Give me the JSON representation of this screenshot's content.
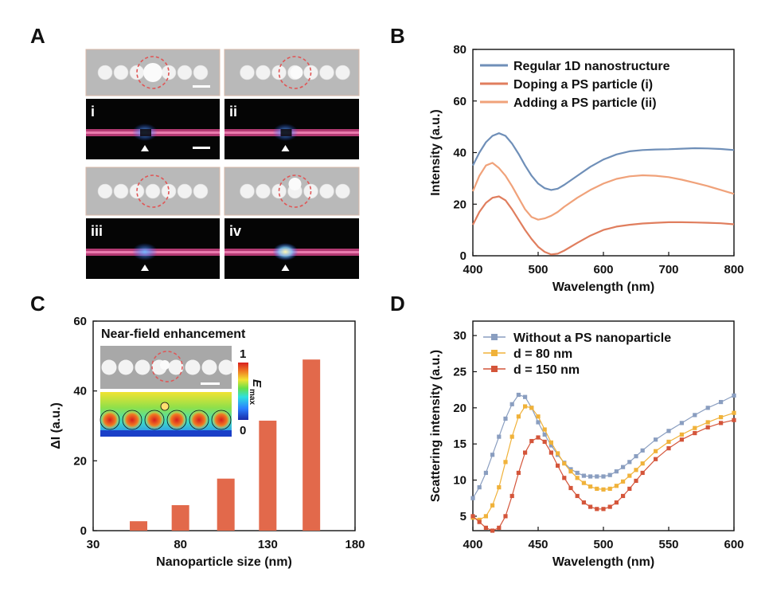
{
  "panel_letters": {
    "a": "A",
    "b": "B",
    "c": "C",
    "d": "D"
  },
  "panel_a": {
    "subpanels": [
      "i",
      "ii",
      "iii",
      "iv"
    ],
    "sem_bg": "#b9b9b9",
    "particle_color": "#f2f2f2",
    "highlight_circle_color": "#e05555",
    "dark_bg": "#050505",
    "line_color": "#c8407f",
    "spot_color": "#3a8cff"
  },
  "chart_data": [
    {
      "panel": "B",
      "type": "line",
      "xlabel": "Wavelength (nm)",
      "ylabel": "Intensity (a.u.)",
      "xlim": [
        400,
        800
      ],
      "ylim": [
        0,
        80
      ],
      "xticks": [
        400,
        500,
        600,
        700,
        800
      ],
      "yticks": [
        0,
        20,
        40,
        60,
        80
      ],
      "grid": false,
      "legend_position": "top-left",
      "series": [
        {
          "name": "Regular 1D nanostructure",
          "color": "#6f8fb8",
          "x": [
            400,
            410,
            420,
            430,
            440,
            450,
            460,
            470,
            480,
            490,
            500,
            510,
            520,
            530,
            540,
            560,
            580,
            600,
            620,
            640,
            660,
            680,
            700,
            720,
            740,
            760,
            780,
            800
          ],
          "y": [
            35,
            40,
            44,
            46.5,
            47.5,
            46.5,
            43.5,
            39.5,
            35,
            31,
            28,
            26.2,
            25.5,
            26,
            27.5,
            31,
            34.5,
            37.3,
            39.3,
            40.5,
            41,
            41.2,
            41.3,
            41.5,
            41.7,
            41.6,
            41.4,
            41
          ]
        },
        {
          "name": "Doping a PS particle (i)",
          "color": "#e07e5e",
          "x": [
            400,
            410,
            420,
            430,
            440,
            450,
            460,
            470,
            480,
            490,
            500,
            510,
            520,
            530,
            540,
            560,
            580,
            600,
            620,
            640,
            660,
            680,
            700,
            720,
            740,
            760,
            780,
            800
          ],
          "y": [
            12,
            17,
            20.5,
            22.5,
            23,
            21.5,
            18,
            14,
            10,
            6.5,
            3.5,
            1.5,
            0.5,
            0.8,
            2,
            5,
            7.8,
            10,
            11.3,
            12,
            12.5,
            12.8,
            13,
            13,
            12.9,
            12.8,
            12.6,
            12.2
          ]
        },
        {
          "name": "Adding a PS particle (ii)",
          "color": "#f0a27a",
          "x": [
            400,
            410,
            420,
            430,
            440,
            450,
            460,
            470,
            480,
            490,
            500,
            510,
            520,
            530,
            540,
            560,
            580,
            600,
            620,
            640,
            660,
            680,
            700,
            720,
            740,
            760,
            780,
            800
          ],
          "y": [
            25,
            31,
            35,
            36,
            34,
            31,
            27,
            22.5,
            18,
            15,
            14,
            14.5,
            15.5,
            17,
            19,
            22.5,
            25.5,
            28,
            29.8,
            30.8,
            31.2,
            31,
            30.5,
            29.5,
            28.3,
            27,
            25.5,
            24
          ]
        }
      ]
    },
    {
      "panel": "C",
      "type": "bar",
      "xlabel": "Nanoparticle size (nm)",
      "ylabel": "ΔI (a.u.)",
      "xlim": [
        30,
        180
      ],
      "ylim": [
        0,
        60
      ],
      "xticks": [
        30,
        80,
        130,
        180
      ],
      "yticks": [
        0,
        20,
        40,
        60
      ],
      "bar_color": "#e2694b",
      "bars": [
        {
          "x": 56,
          "value": 2.7
        },
        {
          "x": 80,
          "value": 7.3
        },
        {
          "x": 106,
          "value": 14.9
        },
        {
          "x": 130,
          "value": 31.5
        },
        {
          "x": 155,
          "value": 49
        }
      ],
      "inset": {
        "title": "Near-field enhancement",
        "colorbar_max": "1",
        "colorbar_min": "0",
        "colorbar_label": "E",
        "colorbar_label_sub": "max"
      }
    },
    {
      "panel": "D",
      "type": "line",
      "xlabel": "Wavelength (nm)",
      "ylabel": "Scattering intensity (a.u.)",
      "xlim": [
        400,
        600
      ],
      "ylim": [
        3,
        32
      ],
      "xticks": [
        400,
        450,
        500,
        550,
        600
      ],
      "yticks": [
        5,
        10,
        15,
        20,
        25,
        30
      ],
      "grid": false,
      "legend_position": "top-left",
      "series": [
        {
          "name": "Without a PS nanoparticle",
          "color": "#8a9ec0",
          "x": [
            400,
            405,
            410,
            415,
            420,
            425,
            430,
            435,
            440,
            445,
            450,
            455,
            460,
            465,
            470,
            475,
            480,
            485,
            490,
            495,
            500,
            505,
            510,
            515,
            520,
            525,
            530,
            540,
            550,
            560,
            570,
            580,
            590,
            600
          ],
          "y": [
            7.5,
            9,
            11,
            13.5,
            16,
            18.5,
            20.5,
            21.8,
            21.5,
            20,
            18,
            16.3,
            14.8,
            13.5,
            12.4,
            11.5,
            11,
            10.6,
            10.5,
            10.5,
            10.5,
            10.7,
            11.2,
            11.8,
            12.5,
            13.3,
            14.1,
            15.6,
            16.8,
            17.9,
            19,
            20,
            20.8,
            21.7
          ]
        },
        {
          "name": "d = 80 nm",
          "color": "#f0b23a",
          "x": [
            400,
            405,
            410,
            415,
            420,
            425,
            430,
            435,
            440,
            445,
            450,
            455,
            460,
            465,
            470,
            475,
            480,
            485,
            490,
            495,
            500,
            505,
            510,
            515,
            520,
            525,
            530,
            540,
            550,
            560,
            570,
            580,
            590,
            600
          ],
          "y": [
            4.8,
            4.5,
            5,
            6.5,
            9,
            12.5,
            16,
            18.8,
            20.2,
            20,
            18.8,
            17,
            15.2,
            13.7,
            12.3,
            11.2,
            10.3,
            9.6,
            9.1,
            8.8,
            8.7,
            8.8,
            9.2,
            9.8,
            10.6,
            11.4,
            12.3,
            14,
            15.3,
            16.3,
            17.2,
            18,
            18.7,
            19.3
          ]
        },
        {
          "name": "d = 150 nm",
          "color": "#d4553a",
          "x": [
            400,
            405,
            410,
            415,
            420,
            425,
            430,
            435,
            440,
            445,
            450,
            455,
            460,
            465,
            470,
            475,
            480,
            485,
            490,
            495,
            500,
            505,
            510,
            515,
            520,
            525,
            530,
            540,
            550,
            560,
            570,
            580,
            590,
            600
          ],
          "y": [
            5,
            4.2,
            3.4,
            3,
            3.4,
            5,
            7.8,
            11,
            13.8,
            15.4,
            15.9,
            15.3,
            13.8,
            12,
            10.3,
            8.9,
            7.8,
            6.9,
            6.3,
            6,
            6,
            6.3,
            6.9,
            7.8,
            8.8,
            9.9,
            11,
            12.9,
            14.4,
            15.6,
            16.5,
            17.3,
            17.9,
            18.3
          ]
        }
      ]
    }
  ]
}
